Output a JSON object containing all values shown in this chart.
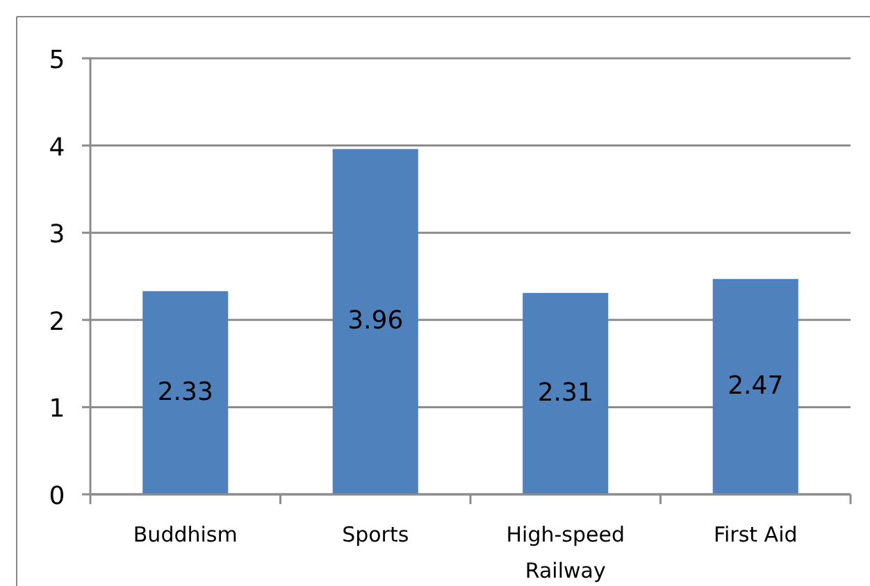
{
  "chart_data": {
    "type": "bar",
    "categories": [
      "Buddhism",
      "Sports",
      "High-speed Railway",
      "First Aid"
    ],
    "values": [
      2.33,
      3.96,
      2.31,
      2.47
    ],
    "color": "#4f81bd",
    "ylim": [
      0,
      5
    ],
    "yticks": [
      0,
      1,
      2,
      3,
      4,
      5
    ],
    "grid": "y",
    "data_labels": true
  }
}
